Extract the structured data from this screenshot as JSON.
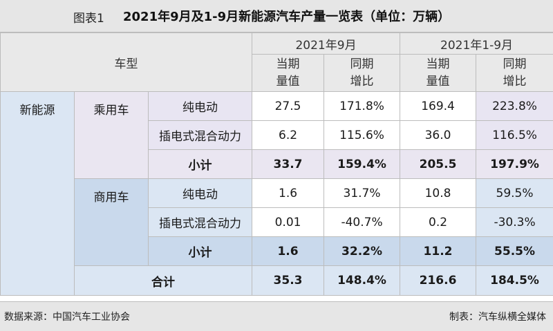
{
  "figure": {
    "label": "图表1",
    "title": "2021年9月及1-9月新能源汽车产量一览表（单位：万辆）"
  },
  "header": {
    "vehicle_type": "车型",
    "period_sep": "2021年9月",
    "period_ytd": "2021年1-9月",
    "current_value": [
      "当期",
      "量值"
    ],
    "yoy": [
      "同期",
      "增比"
    ]
  },
  "category": "新能源",
  "passenger": {
    "label": "乘用车",
    "rows": [
      {
        "type": "纯电动",
        "sep_value": "27.5",
        "sep_yoy": "171.8%",
        "ytd_value": "169.4",
        "ytd_yoy": "223.8%"
      },
      {
        "type": "插电式混合动力",
        "sep_value": "6.2",
        "sep_yoy": "115.6%",
        "ytd_value": "36.0",
        "ytd_yoy": "116.5%"
      }
    ],
    "subtotal": {
      "label": "小计",
      "sep_value": "33.7",
      "sep_yoy": "159.4%",
      "ytd_value": "205.5",
      "ytd_yoy": "197.9%"
    }
  },
  "commercial": {
    "label": "商用车",
    "rows": [
      {
        "type": "纯电动",
        "sep_value": "1.6",
        "sep_yoy": "31.7%",
        "ytd_value": "10.8",
        "ytd_yoy": "59.5%"
      },
      {
        "type": "插电式混合动力",
        "sep_value": "0.01",
        "sep_yoy": "-40.7%",
        "ytd_value": "0.2",
        "ytd_yoy": "-30.3%"
      }
    ],
    "subtotal": {
      "label": "小计",
      "sep_value": "1.6",
      "sep_yoy": "32.2%",
      "ytd_value": "11.2",
      "ytd_yoy": "55.5%"
    }
  },
  "total": {
    "label": "合计",
    "sep_value": "35.3",
    "sep_yoy": "148.4%",
    "ytd_value": "216.6",
    "ytd_yoy": "184.5%"
  },
  "footer": {
    "source": "数据来源：中国汽车工业协会",
    "made_by": "制表：汽车纵横全媒体"
  }
}
